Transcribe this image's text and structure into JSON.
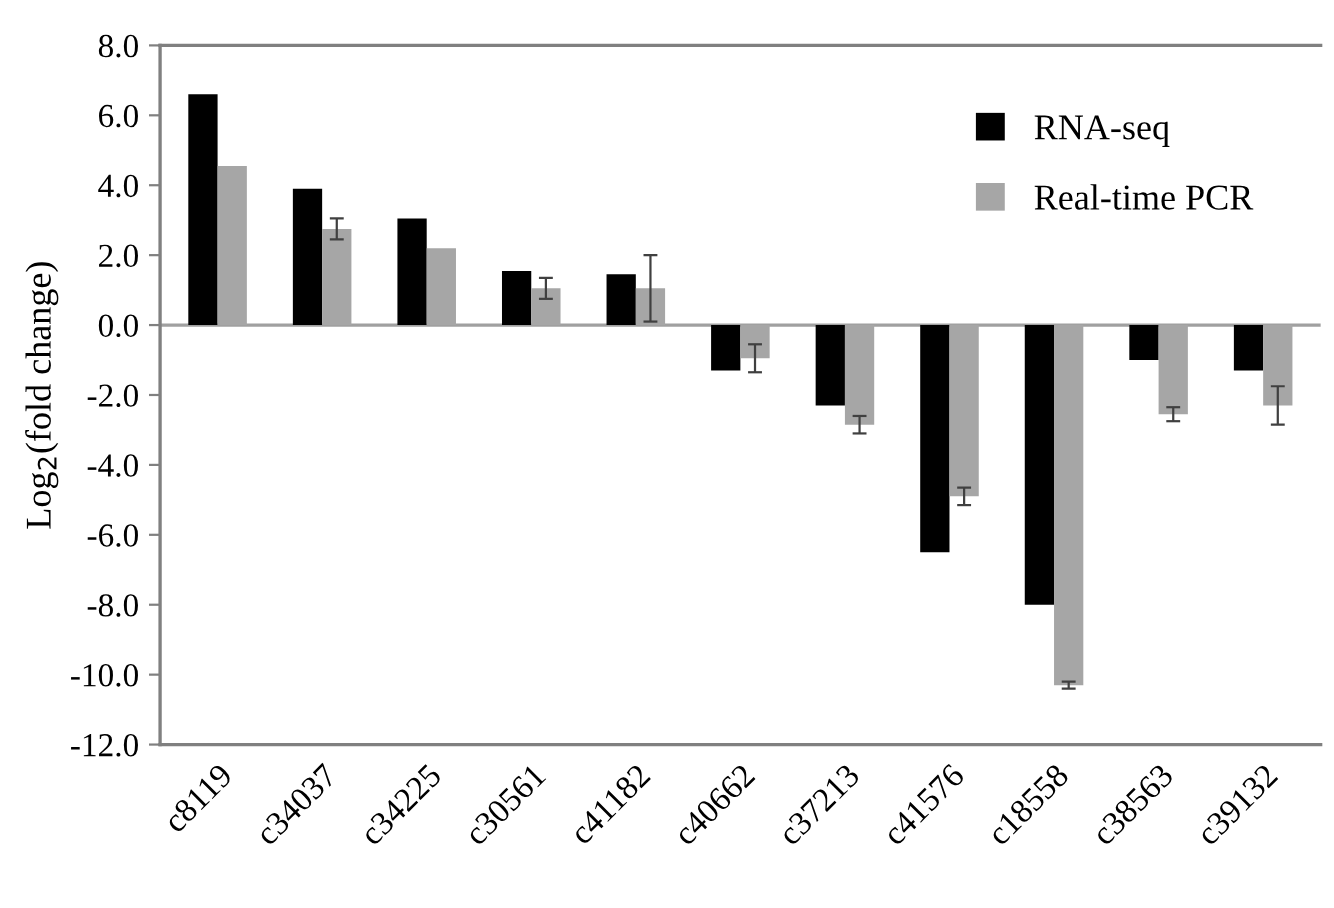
{
  "chart_data": {
    "type": "bar",
    "ylabel": "Log$_{2}$(fold change)",
    "categories": [
      "c8119",
      "c34037",
      "c34225",
      "c30561",
      "c41182",
      "c40662",
      "c37213",
      "c41576",
      "c18558",
      "c38563",
      "c39132"
    ],
    "series": [
      {
        "name": "RNA-seq",
        "color": "#000000",
        "values": [
          6.6,
          3.9,
          3.05,
          1.55,
          1.45,
          -1.3,
          -2.3,
          -6.5,
          -8.0,
          -1.0,
          -1.3
        ]
      },
      {
        "name": "Real-time PCR",
        "color": "#a6a6a6",
        "values": [
          4.55,
          2.75,
          2.2,
          1.05,
          1.05,
          -0.95,
          -2.85,
          -4.9,
          -10.3,
          -2.55,
          -2.3
        ],
        "errors": [
          null,
          0.3,
          null,
          0.3,
          0.95,
          0.4,
          0.25,
          0.25,
          0.1,
          0.2,
          0.55
        ]
      }
    ],
    "ylim": [
      -12,
      8
    ],
    "yticks": [
      {
        "value": -12,
        "label": "-12.0"
      },
      {
        "value": -10,
        "label": "-10.0"
      },
      {
        "value": -8,
        "label": "-8.0"
      },
      {
        "value": -6,
        "label": "-6.0"
      },
      {
        "value": -4,
        "label": "-4.0"
      },
      {
        "value": -2,
        "label": "-2.0"
      },
      {
        "value": 0,
        "label": "0.0"
      },
      {
        "value": 2,
        "label": "2.0"
      },
      {
        "value": 4,
        "label": "4.0"
      },
      {
        "value": 6,
        "label": "6.0"
      },
      {
        "value": 8,
        "label": "8.0"
      }
    ],
    "ref_lines": [
      {
        "axis": "y",
        "value": 0,
        "color": "#a0a0a0"
      }
    ],
    "grid": false,
    "legend": "top right"
  }
}
